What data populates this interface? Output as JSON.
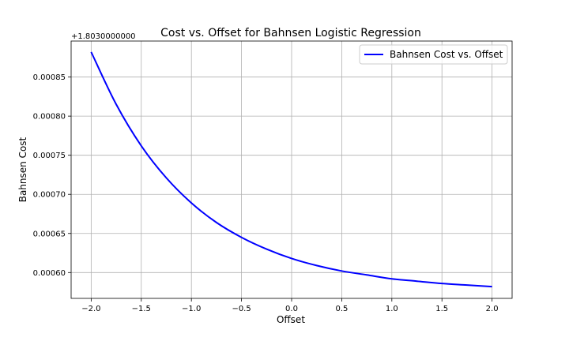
{
  "chart_data": {
    "type": "line",
    "title": "Cost vs. Offset for Bahnsen Logistic Regression",
    "xlabel": "Offset",
    "ylabel": "Bahnsen Cost",
    "offset_text": "+1.8030000000",
    "xlim": [
      -2.2,
      2.2
    ],
    "ylim": [
      0.000567,
      0.000896
    ],
    "x_ticks": [
      -2.0,
      -1.5,
      -1.0,
      -0.5,
      0.0,
      0.5,
      1.0,
      1.5,
      2.0
    ],
    "x_tick_labels": [
      "−2.0",
      "−1.5",
      "−1.0",
      "−0.5",
      "0.0",
      "0.5",
      "1.0",
      "1.5",
      "2.0"
    ],
    "y_ticks": [
      0.0006,
      0.00065,
      0.0007,
      0.00075,
      0.0008,
      0.00085
    ],
    "y_tick_labels": [
      "0.00060",
      "0.00065",
      "0.00070",
      "0.00075",
      "0.00080",
      "0.00085"
    ],
    "grid": true,
    "legend_position": "top-right",
    "series": [
      {
        "name": "Bahnsen Cost vs. Offset",
        "color": "#0000ff",
        "x": [
          -2.0,
          -1.75,
          -1.5,
          -1.25,
          -1.0,
          -0.75,
          -0.5,
          -0.25,
          0.0,
          0.25,
          0.5,
          0.75,
          1.0,
          1.25,
          1.5,
          1.75,
          2.0
        ],
        "values": [
          0.000882,
          0.000815,
          0.000762,
          0.000721,
          0.000689,
          0.000664,
          0.000645,
          0.00063,
          0.000618,
          0.000609,
          0.000602,
          0.000597,
          0.000592,
          0.000589,
          0.000586,
          0.000584,
          0.000582
        ]
      }
    ]
  }
}
